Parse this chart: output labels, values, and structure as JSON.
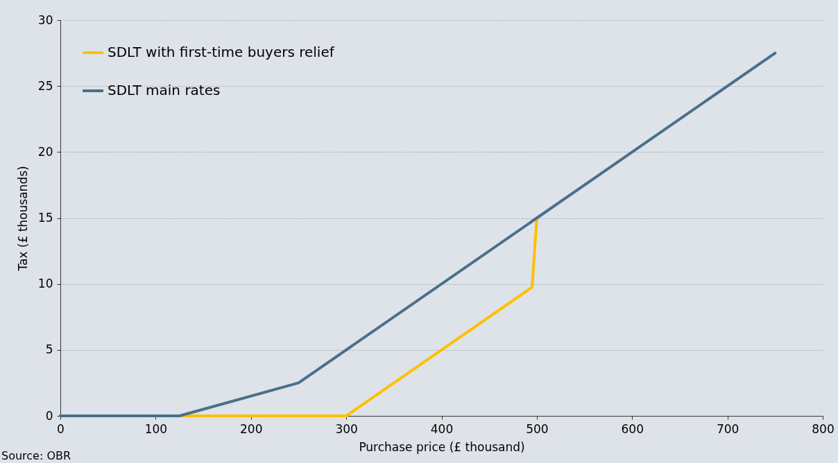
{
  "chart_data": {
    "type": "line",
    "xlabel": "Purchase price (£ thousand)",
    "ylabel": "Tax (£ thousands)",
    "annotations": [
      "Source: OBR"
    ],
    "series": [
      {
        "name": "SDLT with first-time buyers relief",
        "color": "#ffc000",
        "x": [
          0,
          300,
          495,
          500
        ],
        "values": [
          0,
          0,
          9.75,
          15
        ]
      },
      {
        "name": "SDLT main rates",
        "color": "#4a6f8a",
        "x": [
          0,
          125,
          250,
          500,
          750
        ],
        "values": [
          0,
          0,
          2.5,
          15,
          27.5
        ]
      }
    ],
    "xlim": [
      0,
      800
    ],
    "xticks": [
      0,
      100,
      200,
      300,
      400,
      500,
      600,
      700,
      800
    ],
    "ylim": [
      0,
      30
    ],
    "yticks": [
      0,
      5,
      10,
      15,
      20,
      25,
      30
    ],
    "grid": "y",
    "legend": "top left",
    "marker": "none",
    "line_style": "solid"
  }
}
